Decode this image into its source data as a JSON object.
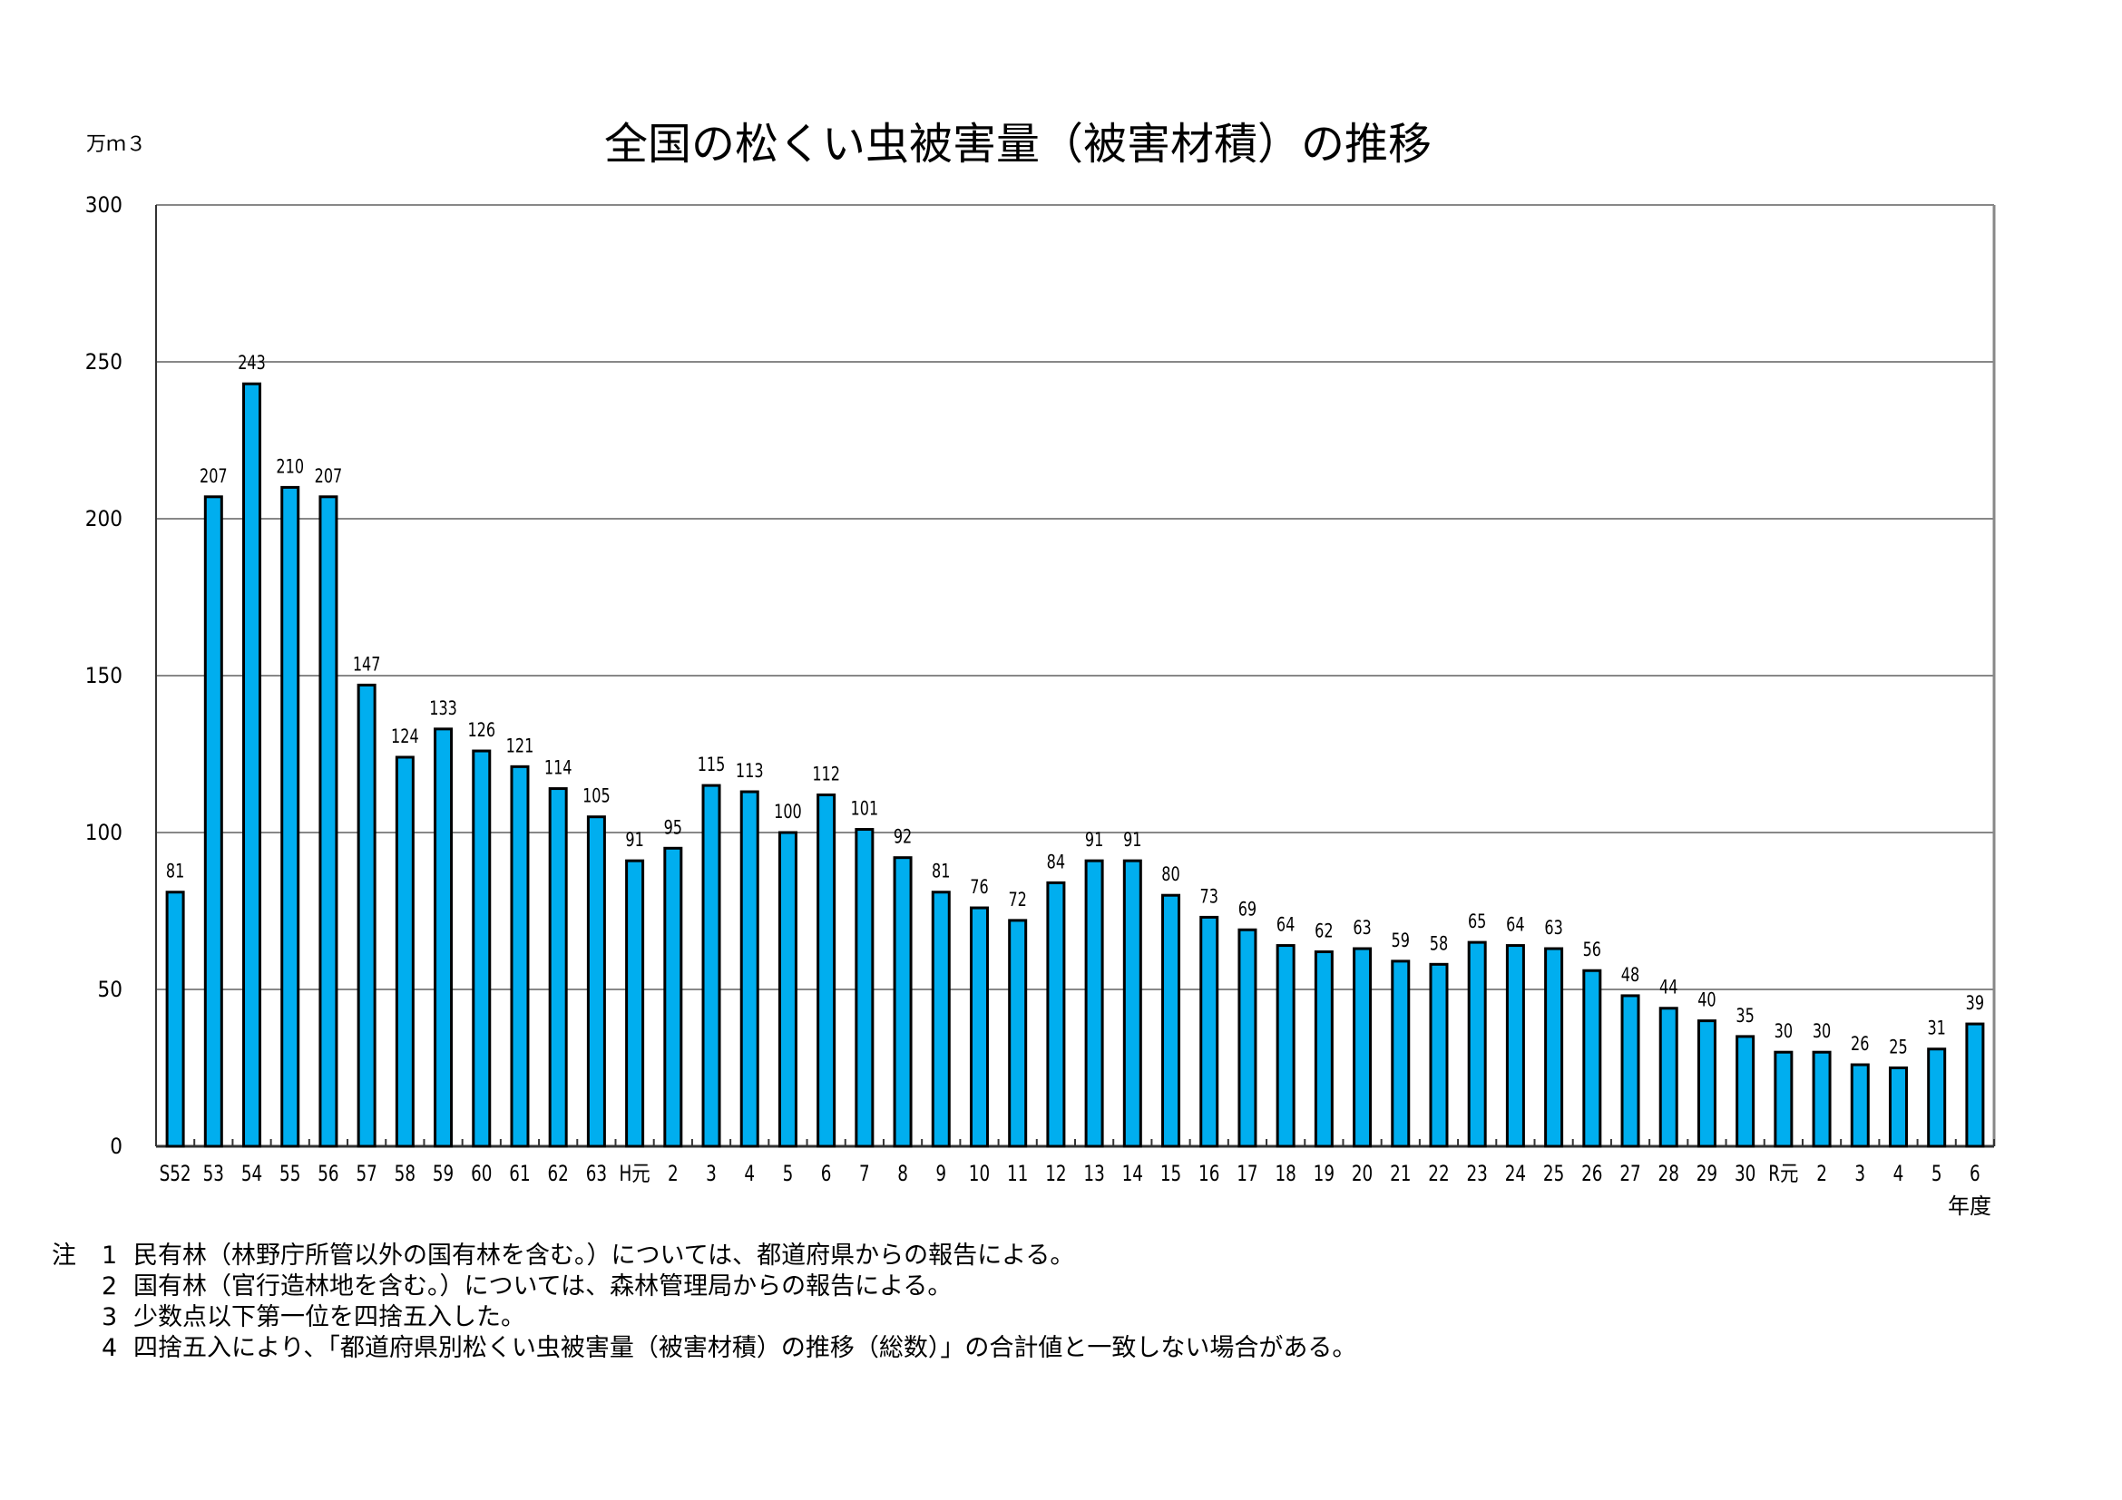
{
  "chart_data": {
    "type": "bar",
    "title": "全国の松くい虫被害量（被害材積）の推移",
    "ylabel": "万ｍ３",
    "xlabel": "年度",
    "ylim": [
      0,
      300
    ],
    "yticks": [
      0,
      50,
      100,
      150,
      200,
      250,
      300
    ],
    "grid": true,
    "categories": [
      "S52",
      "53",
      "54",
      "55",
      "56",
      "57",
      "58",
      "59",
      "60",
      "61",
      "62",
      "63",
      "H元",
      "2",
      "3",
      "4",
      "5",
      "6",
      "7",
      "8",
      "9",
      "10",
      "11",
      "12",
      "13",
      "14",
      "15",
      "16",
      "17",
      "18",
      "19",
      "20",
      "21",
      "22",
      "23",
      "24",
      "25",
      "26",
      "27",
      "28",
      "29",
      "30",
      "R元",
      "2",
      "3",
      "4",
      "5",
      "6"
    ],
    "values": [
      81,
      207,
      243,
      210,
      207,
      147,
      124,
      133,
      126,
      121,
      114,
      105,
      91,
      95,
      115,
      113,
      100,
      112,
      101,
      92,
      81,
      76,
      72,
      84,
      91,
      91,
      80,
      73,
      69,
      64,
      62,
      63,
      59,
      58,
      65,
      64,
      63,
      56,
      48,
      44,
      40,
      35,
      30,
      30,
      26,
      25,
      31,
      39
    ],
    "bar_color": "#00AEEF"
  },
  "notes": {
    "prefix": "注",
    "items": [
      {
        "num": "1",
        "text": "民有林（林野庁所管以外の国有林を含む。）については、都道府県からの報告による。"
      },
      {
        "num": "2",
        "text": "国有林（官行造林地を含む。）については、森林管理局からの報告による。"
      },
      {
        "num": "3",
        "text": "少数点以下第一位を四捨五入した。"
      },
      {
        "num": "4",
        "text": "四捨五入により、「都道府県別松くい虫被害量（被害材積）の推移（総数）」の合計値と一致しない場合がある。"
      }
    ]
  }
}
